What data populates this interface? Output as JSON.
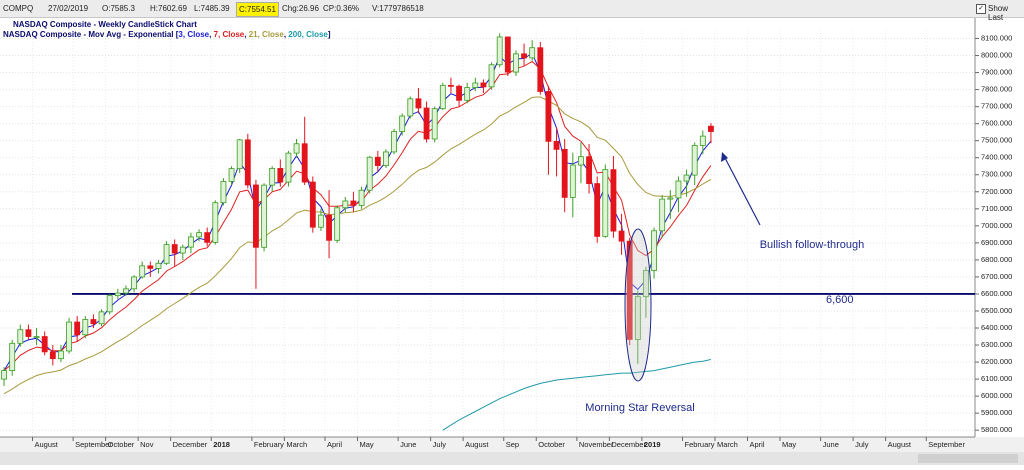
{
  "header": {
    "symbol": "COMPQ",
    "date": "27/02/2019",
    "open": "O:7585.3",
    "high": "H:7602.69",
    "low": "L:7485.39",
    "close": "C:7554.51",
    "change": "Chg:26.96",
    "change_pct": "CP:0.36%",
    "volume": "V:1779786518",
    "show_last": "Show Last"
  },
  "chart_data": {
    "type": "candlestick",
    "title": "NASDAQ Composite - Weekly CandleStick Chart",
    "legend_prefix": "NASDAQ Composite - Mov Avg - Exponential [",
    "legend_separator": ", ",
    "legend_suffix": "]",
    "up_color": "#3a9d23",
    "up_fill": "#dff3d6",
    "down_color": "#e3141b",
    "categories": [
      null,
      null,
      null,
      null,
      "August",
      null,
      null,
      null,
      null,
      "September",
      null,
      null,
      null,
      "October",
      null,
      null,
      null,
      "Nov",
      null,
      null,
      null,
      "December",
      null,
      null,
      null,
      null,
      "2018",
      null,
      null,
      null,
      null,
      "February",
      null,
      null,
      null,
      "March",
      null,
      null,
      null,
      null,
      "April",
      null,
      null,
      null,
      "May",
      null,
      null,
      null,
      null,
      "June",
      null,
      null,
      null,
      "July",
      null,
      null,
      null,
      "August",
      null,
      null,
      null,
      null,
      "Sep",
      null,
      null,
      null,
      "October",
      null,
      null,
      null,
      null,
      "November",
      null,
      null,
      null,
      "December",
      null,
      null,
      null,
      "2019",
      null,
      null,
      null,
      null,
      "February",
      null,
      null,
      null,
      "March",
      null,
      null,
      null,
      "April",
      null,
      null,
      null,
      "May",
      null,
      null,
      null,
      null,
      "June",
      null,
      null,
      null,
      "July",
      null,
      null,
      null,
      "August",
      null,
      null,
      null,
      null,
      "September",
      null,
      null,
      null,
      null,
      null
    ],
    "open": [
      6100,
      6150,
      6310,
      6390,
      6350,
      6350,
      6260,
      6220,
      6265,
      6435,
      6360,
      6450,
      6425,
      6495,
      6590,
      6605,
      6630,
      6700,
      6765,
      6750,
      6780,
      6890,
      6840,
      6875,
      6935,
      6960,
      6903,
      7136,
      7261,
      7336,
      7505,
      7240,
      6874,
      7239,
      7337,
      7257,
      7427,
      7482,
      7257,
      6992,
      7063,
      6915,
      7106,
      7146,
      7120,
      7209,
      7403,
      7354,
      7434,
      7554,
      7645,
      7746,
      7692,
      7510,
      7688,
      7825,
      7820,
      7737,
      7812,
      7839,
      7816,
      7946,
      8109,
      7903,
      8010,
      7986,
      8046,
      7789,
      7496,
      7449,
      7167,
      7357,
      7406,
      7248,
      6938,
      7330,
      6969,
      6910,
      6333,
      6584,
      6738,
      6971,
      7157,
      7164,
      7263,
      7298,
      7472,
      7585,
      null,
      null,
      null,
      null,
      null,
      null,
      null,
      null,
      null,
      null,
      null,
      null,
      null,
      null,
      null,
      null,
      null,
      null,
      null,
      null,
      null,
      null,
      null,
      null,
      null,
      null,
      null,
      null,
      null,
      null,
      null,
      null
    ],
    "high": [
      6170,
      6330,
      6420,
      6420,
      6400,
      6380,
      6300,
      6300,
      6460,
      6470,
      6470,
      6480,
      6510,
      6600,
      6630,
      6650,
      6710,
      6790,
      6790,
      6800,
      6910,
      6920,
      6890,
      6960,
      6980,
      6990,
      7150,
      7280,
      7350,
      7510,
      7540,
      7270,
      7250,
      7350,
      7390,
      7440,
      7510,
      7640,
      7290,
      7100,
      7210,
      7120,
      7170,
      7200,
      7230,
      7410,
      7440,
      7450,
      7570,
      7660,
      7760,
      7810,
      7730,
      7700,
      7840,
      7870,
      7830,
      7840,
      7870,
      7860,
      7960,
      8130,
      8110,
      8030,
      8070,
      8090,
      8080,
      7820,
      7580,
      7510,
      7430,
      7490,
      7480,
      7290,
      7360,
      7410,
      7070,
      6930,
      6620,
      6760,
      6990,
      7180,
      7210,
      7290,
      7330,
      7490,
      7560,
      7603,
      null,
      null,
      null,
      null,
      null,
      null,
      null,
      null,
      null,
      null,
      null,
      null,
      null,
      null,
      null,
      null,
      null,
      null,
      null,
      null,
      null,
      null,
      null,
      null,
      null,
      null,
      null,
      null,
      null,
      null,
      null,
      null
    ],
    "low": [
      6060,
      6120,
      6290,
      6330,
      6300,
      6240,
      6180,
      6200,
      6250,
      6320,
      6340,
      6400,
      6410,
      6480,
      6570,
      6590,
      6610,
      6690,
      6700,
      6720,
      6770,
      6760,
      6800,
      6840,
      6910,
      6880,
      6890,
      7120,
      7240,
      7310,
      7220,
      6630,
      6850,
      7200,
      7230,
      7230,
      7400,
      7240,
      6960,
      6970,
      6810,
      6900,
      7080,
      7080,
      7100,
      7190,
      7320,
      7340,
      7420,
      7530,
      7630,
      7660,
      7490,
      7490,
      7680,
      7780,
      7700,
      7720,
      7790,
      7780,
      7800,
      7930,
      7880,
      7880,
      7940,
      7970,
      7770,
      7300,
      7290,
      7080,
      7050,
      7250,
      7190,
      6900,
      6930,
      6930,
      6830,
      6300,
      6190,
      6460,
      6690,
      6930,
      7040,
      7080,
      7170,
      7240,
      7420,
      7485,
      null,
      null,
      null,
      null,
      null,
      null,
      null,
      null,
      null,
      null,
      null,
      null,
      null,
      null,
      null,
      null,
      null,
      null,
      null,
      null,
      null,
      null,
      null,
      null,
      null,
      null,
      null,
      null,
      null,
      null,
      null,
      null
    ],
    "close": [
      6150,
      6310,
      6390,
      6350,
      6350,
      6260,
      6220,
      6265,
      6435,
      6360,
      6450,
      6425,
      6495,
      6590,
      6605,
      6630,
      6700,
      6765,
      6750,
      6780,
      6890,
      6840,
      6875,
      6935,
      6960,
      6903,
      7136,
      7261,
      7336,
      7505,
      7240,
      6874,
      7239,
      7337,
      7257,
      7427,
      7482,
      7257,
      6992,
      7063,
      6915,
      7106,
      7146,
      7120,
      7209,
      7403,
      7354,
      7434,
      7554,
      7645,
      7746,
      7692,
      7510,
      7688,
      7825,
      7820,
      7737,
      7812,
      7839,
      7816,
      7946,
      8109,
      7903,
      8010,
      7986,
      8046,
      7789,
      7496,
      7449,
      7167,
      7357,
      7406,
      7248,
      6938,
      7330,
      6969,
      6910,
      6333,
      6584,
      6738,
      6971,
      7157,
      7164,
      7263,
      7298,
      7472,
      7527,
      7554,
      null,
      null,
      null,
      null,
      null,
      null,
      null,
      null,
      null,
      null,
      null,
      null,
      null,
      null,
      null,
      null,
      null,
      null,
      null,
      null,
      null,
      null,
      null,
      null,
      null,
      null,
      null,
      null,
      null,
      null,
      null,
      null
    ],
    "series": [
      {
        "name": "3, Close",
        "color": "#1a1adb",
        "values": [
          6150,
          6230,
          6310,
          6330,
          6340,
          6300,
          6260,
          6262,
          6349,
          6354,
          6402,
          6414,
          6454,
          6522,
          6564,
          6597,
          6648,
          6707,
          6728,
          6754,
          6822,
          6831,
          6853,
          6894,
          6927,
          6915,
          7026,
          7143,
          7240,
          7372,
          7306,
          7090,
          7165,
          7251,
          7254,
          7340,
          7411,
          7334,
          7163,
          7113,
          7014,
          7060,
          7103,
          7112,
          7160,
          7282,
          7318,
          7376,
          7465,
          7555,
          7650,
          7671,
          7591,
          7639,
          7732,
          7776,
          7757,
          7784,
          7812,
          7814,
          7880,
          7995,
          7949,
          7979,
          7983,
          8014,
          7902,
          7699,
          7574,
          7371,
          7364,
          7385,
          7316,
          7127,
          7229,
          7099,
          7004,
          6669,
          6627,
          6682,
          6826,
          6992,
          7078,
          7170,
          7234,
          7353,
          7440,
          7497,
          null,
          null,
          null,
          null,
          null,
          null,
          null,
          null,
          null,
          null,
          null,
          null,
          null,
          null,
          null,
          null,
          null,
          null,
          null,
          null,
          null,
          null,
          null,
          null,
          null,
          null,
          null,
          null,
          null,
          null,
          null,
          null
        ]
      },
      {
        "name": "7, Close",
        "color": "#e02020",
        "values": [
          6150,
          6190,
          6240,
          6268,
          6288,
          6281,
          6266,
          6266,
          6308,
          6321,
          6353,
          6371,
          6402,
          6449,
          6488,
          6523,
          6567,
          6617,
          6650,
          6683,
          6735,
          6761,
          6790,
          6826,
          6860,
          6871,
          6937,
          7018,
          7098,
          7200,
          7210,
          7126,
          7154,
          7200,
          7214,
          7267,
          7321,
          7305,
          7223,
          7183,
          7116,
          7114,
          7122,
          7122,
          7144,
          7209,
          7245,
          7292,
          7358,
          7430,
          7509,
          7555,
          7544,
          7580,
          7641,
          7686,
          7699,
          7727,
          7755,
          7770,
          7814,
          7888,
          7892,
          7922,
          7938,
          7965,
          7921,
          7815,
          7723,
          7584,
          7527,
          7497,
          7435,
          7311,
          7316,
          7229,
          7150,
          6946,
          6855,
          6826,
          6862,
          6936,
          6993,
          7060,
          7120,
          7208,
          7288,
          7355,
          null,
          null,
          null,
          null,
          null,
          null,
          null,
          null,
          null,
          null,
          null,
          null,
          null,
          null,
          null,
          null,
          null,
          null,
          null,
          null,
          null,
          null,
          null,
          null,
          null,
          null,
          null,
          null,
          null,
          null,
          null,
          null
        ]
      },
      {
        "name": "21, Close",
        "color": "#a89a3c",
        "values": [
          6014,
          6041,
          6073,
          6098,
          6121,
          6134,
          6142,
          6153,
          6179,
          6195,
          6218,
          6237,
          6261,
          6291,
          6320,
          6348,
          6380,
          6415,
          6445,
          6476,
          6514,
          6544,
          6574,
          6607,
          6639,
          6663,
          6706,
          6756,
          6809,
          6872,
          6905,
          6902,
          6933,
          6970,
          6996,
          7035,
          7076,
          7092,
          7083,
          7081,
          7066,
          7070,
          7077,
          7081,
          7093,
          7121,
          7142,
          7169,
          7204,
          7244,
          7290,
          7326,
          7343,
          7374,
          7415,
          7452,
          7478,
          7508,
          7538,
          7563,
          7598,
          7645,
          7668,
          7699,
          7725,
          7754,
          7757,
          7733,
          7707,
          7658,
          7631,
          7611,
          7578,
          7520,
          7503,
          7455,
          7405,
          7308,
          7242,
          7196,
          7176,
          7174,
          7173,
          7181,
          7192,
          7217,
          7245,
          7273,
          null,
          null,
          null,
          null,
          null,
          null,
          null,
          null,
          null,
          null,
          null,
          null,
          null,
          null,
          null,
          null,
          null,
          null,
          null,
          null,
          null,
          null,
          null,
          null,
          null,
          null,
          null,
          null,
          null,
          null,
          null,
          null
        ]
      },
      {
        "name": "200, Close",
        "color": "#1d9aa8",
        "values": [
          null,
          null,
          null,
          null,
          null,
          null,
          null,
          null,
          null,
          null,
          null,
          null,
          null,
          null,
          null,
          null,
          null,
          null,
          null,
          null,
          null,
          null,
          null,
          null,
          null,
          null,
          null,
          null,
          null,
          null,
          null,
          null,
          null,
          null,
          null,
          null,
          null,
          null,
          null,
          null,
          null,
          null,
          null,
          null,
          null,
          null,
          null,
          null,
          null,
          null,
          null,
          null,
          null,
          null,
          5800,
          5830,
          5860,
          5885,
          5910,
          5935,
          5960,
          5985,
          6005,
          6025,
          6045,
          6060,
          6075,
          6085,
          6095,
          6100,
          6105,
          6110,
          6115,
          6120,
          6125,
          6130,
          6135,
          6135,
          6140,
          6145,
          6150,
          6160,
          6170,
          6180,
          6190,
          6200,
          6205,
          6215,
          null,
          null,
          null,
          null,
          null,
          null,
          null,
          null,
          null,
          null,
          null,
          null,
          null,
          null,
          null,
          null,
          null,
          null,
          null,
          null,
          null,
          null,
          null,
          null,
          null,
          null,
          null,
          null,
          null,
          null,
          null,
          null
        ]
      }
    ],
    "ylim": [
      5760,
      8150
    ],
    "yticks": [
      {
        "value": 5800,
        "label": "5800.000"
      },
      {
        "value": 5900,
        "label": "5900.000"
      },
      {
        "value": 6000,
        "label": "6000.000"
      },
      {
        "value": 6100,
        "label": "6100.000"
      },
      {
        "value": 6200,
        "label": "6200.000"
      },
      {
        "value": 6300,
        "label": "6300.000"
      },
      {
        "value": 6400,
        "label": "6400.000"
      },
      {
        "value": 6500,
        "label": "6500.000"
      },
      {
        "value": 6600,
        "label": "6600.000"
      },
      {
        "value": 6700,
        "label": "6700.000"
      },
      {
        "value": 6800,
        "label": "6800.000"
      },
      {
        "value": 6900,
        "label": "6900.000"
      },
      {
        "value": 7000,
        "label": "7000.000"
      },
      {
        "value": 7100,
        "label": "7100.000"
      },
      {
        "value": 7200,
        "label": "7200.000"
      },
      {
        "value": 7300,
        "label": "7300.000"
      },
      {
        "value": 7400,
        "label": "7400.000"
      },
      {
        "value": 7500,
        "label": "7500.000"
      },
      {
        "value": 7600,
        "label": "7600.000"
      },
      {
        "value": 7700,
        "label": "7700.000"
      },
      {
        "value": 7800,
        "label": "7800.000"
      },
      {
        "value": 7900,
        "label": "7900.000"
      },
      {
        "value": 8000,
        "label": "8000.000"
      },
      {
        "value": 8100,
        "label": "8100.000"
      }
    ],
    "grid": true,
    "hline": {
      "value": 6600,
      "label": "6,600",
      "color": "#0a0a6e"
    },
    "annotations": [
      "Bullish follow-through",
      "Morning Star Reversal"
    ]
  }
}
